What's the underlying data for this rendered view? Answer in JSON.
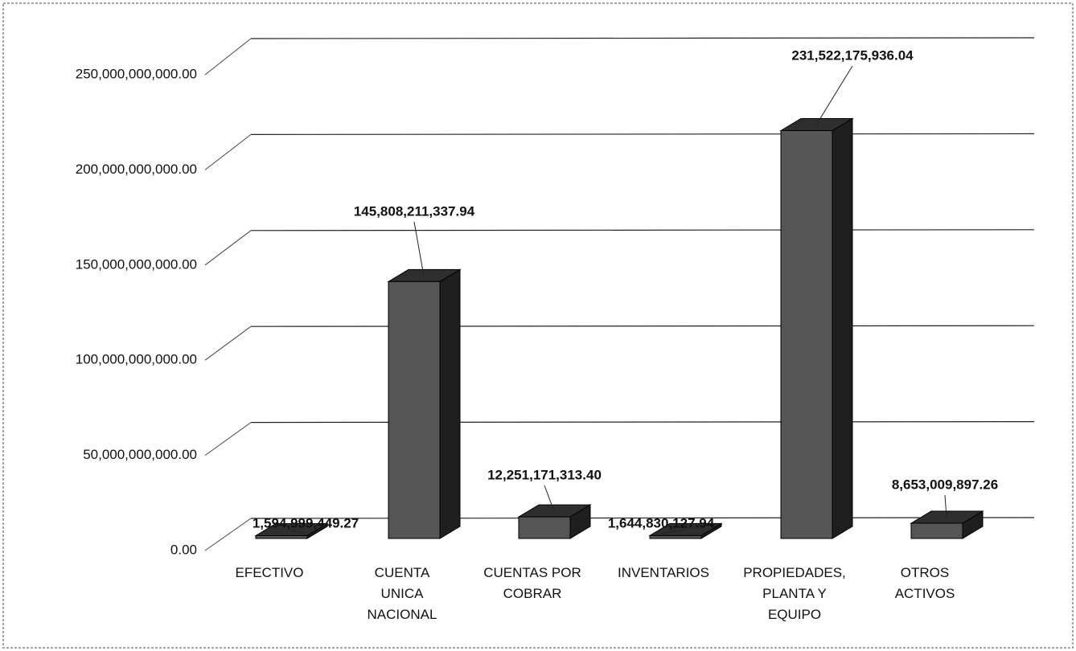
{
  "chart_data": {
    "type": "bar3d",
    "categories": [
      "EFECTIVO",
      "CUENTA\nUNICA\nNACIONAL",
      "CUENTAS POR\nCOBRAR",
      "INVENTARIOS",
      "PROPIEDADES,\nPLANTA Y\nEQUIPO",
      "OTROS\nACTIVOS"
    ],
    "values": [
      1594999449.27,
      145808211337.94,
      12251171313.4,
      1644830127.94,
      231522175936.04,
      8653009897.26
    ],
    "value_labels": [
      "1,594,999,449.27",
      "145,808,211,337.94",
      "12,251,171,313.40",
      "1,644,830,127.94",
      "231,522,175,936.04",
      "8,653,009,897.26"
    ],
    "color": "#555555",
    "ylim": [
      0,
      250000000000
    ],
    "yticks": [
      {
        "value": 0,
        "label": "0.00"
      },
      {
        "value": 50000000000,
        "label": "50,000,000,000.00"
      },
      {
        "value": 100000000000,
        "label": "100,000,000,000.00"
      },
      {
        "value": 150000000000,
        "label": "150,000,000,000.00"
      },
      {
        "value": 200000000000,
        "label": "200,000,000,000.00"
      },
      {
        "value": 250000000000,
        "label": "250,000,000,000.00"
      }
    ],
    "grid": true
  }
}
